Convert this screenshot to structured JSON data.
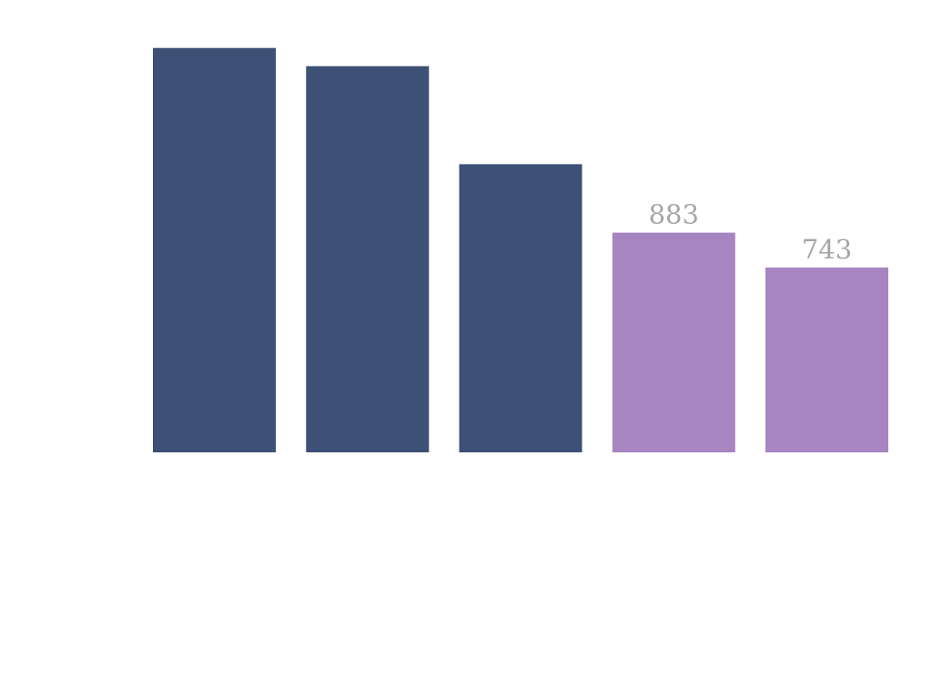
{
  "chart_data": {
    "type": "bar",
    "categories": [
      "",
      "",
      "",
      "",
      ""
    ],
    "values": [
      1625,
      1552,
      1158,
      883,
      743
    ],
    "data_labels": [
      "",
      "",
      "",
      "883",
      "743"
    ],
    "ylim": [
      0,
      1825
    ],
    "grid": false,
    "legend": "none",
    "colors": {
      "primary": "#3d5075",
      "highlight": "#a785c0",
      "label": "#a6a6a6"
    },
    "highlight_indices": [
      3,
      4
    ]
  }
}
